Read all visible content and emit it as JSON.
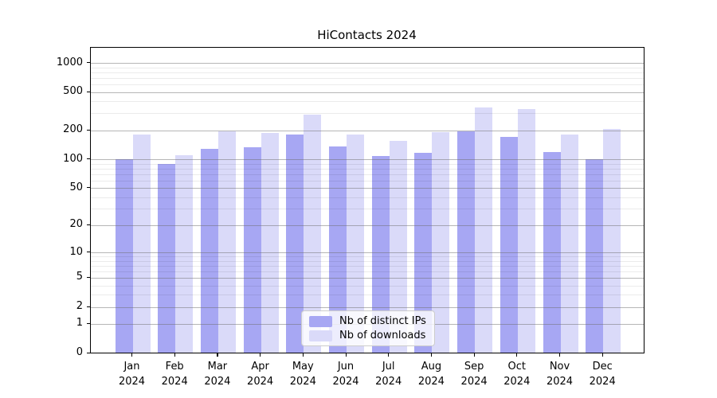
{
  "title": "HiContacts 2024",
  "chart_data": {
    "type": "bar",
    "title": "HiContacts 2024",
    "categories": [
      "Jan 2024",
      "Feb 2024",
      "Mar 2024",
      "Apr 2024",
      "May 2024",
      "Jun 2024",
      "Jul 2024",
      "Aug 2024",
      "Sep 2024",
      "Oct 2024",
      "Nov 2024",
      "Dec 2024"
    ],
    "series": [
      {
        "name": "Nb of distinct IPs",
        "color": "#a7a7f3",
        "values": [
          100,
          89,
          128,
          133,
          180,
          135,
          108,
          115,
          193,
          168,
          118,
          99
        ]
      },
      {
        "name": "Nb of downloads",
        "color": "#dadaf9",
        "values": [
          178,
          109,
          192,
          186,
          290,
          180,
          155,
          189,
          340,
          332,
          180,
          205
        ]
      }
    ],
    "y_axis": {
      "scale": "log1p",
      "major_ticks": [
        0,
        1,
        2,
        5,
        10,
        20,
        50,
        100,
        200,
        500,
        1000
      ],
      "minor_gridlines": [
        3,
        4,
        6,
        7,
        8,
        9,
        30,
        40,
        60,
        70,
        80,
        90,
        300,
        400,
        600,
        700,
        800,
        900
      ],
      "range": [
        0,
        1450
      ]
    },
    "grid": true,
    "legend_position": "lower center"
  },
  "colors": {
    "major_grid": "rgba(110,110,110,0.5)",
    "minor_grid": "rgba(0,0,0,0.08)",
    "axis": "#000000",
    "text": "#000000",
    "legend_background": "rgba(255,255,255,0.8)",
    "legend_border": "#cccccc"
  }
}
